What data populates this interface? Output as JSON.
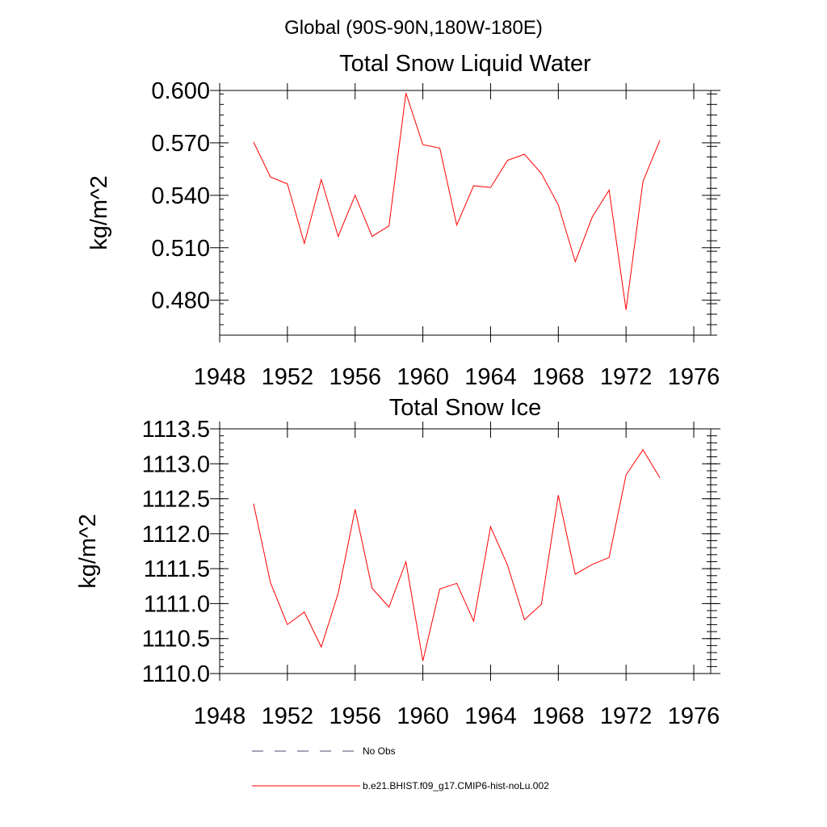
{
  "figure": {
    "suptitle": "Global (90S-90N,180W-180E)",
    "legend": [
      {
        "label": "No Obs",
        "style": "dashed",
        "color": "#4a4a70"
      },
      {
        "label": "b.e21.BHIST.f09_g17.CMIP6-hist-noLu.002",
        "style": "solid",
        "color": "#ff0000"
      }
    ]
  },
  "chart_data": [
    {
      "type": "line",
      "title": "Total Snow Liquid Water",
      "xlabel": "",
      "ylabel": "kg/m^2",
      "xlim": [
        1948,
        1977
      ],
      "ylim": [
        0.46,
        0.6
      ],
      "xticks": [
        1948,
        1952,
        1956,
        1960,
        1964,
        1968,
        1972,
        1976
      ],
      "yticks": [
        0.48,
        0.51,
        0.54,
        0.57,
        0.6
      ],
      "ytick_labels": [
        "0.480",
        "0.510",
        "0.540",
        "0.570",
        "0.600"
      ],
      "x": [
        1950,
        1951,
        1952,
        1953,
        1954,
        1955,
        1956,
        1957,
        1958,
        1959,
        1960,
        1961,
        1962,
        1963,
        1964,
        1965,
        1966,
        1967,
        1968,
        1969,
        1970,
        1971,
        1972,
        1973,
        1974
      ],
      "series": [
        {
          "name": "b.e21.BHIST.f09_g17.CMIP6-hist-noLu.002",
          "color": "#ff0000",
          "values": [
            0.5705,
            0.5505,
            0.5465,
            0.5125,
            0.549,
            0.5165,
            0.54,
            0.5165,
            0.5225,
            0.5985,
            0.569,
            0.567,
            0.523,
            0.5455,
            0.5445,
            0.56,
            0.5635,
            0.5525,
            0.5345,
            0.502,
            0.5275,
            0.543,
            0.4745,
            0.548,
            0.5715
          ]
        }
      ]
    },
    {
      "type": "line",
      "title": "Total Snow Ice",
      "xlabel": "",
      "ylabel": "kg/m^2",
      "xlim": [
        1948,
        1977
      ],
      "ylim": [
        1110.0,
        1113.5
      ],
      "xticks": [
        1948,
        1952,
        1956,
        1960,
        1964,
        1968,
        1972,
        1976
      ],
      "yticks": [
        1110.0,
        1110.5,
        1111.0,
        1111.5,
        1112.0,
        1112.5,
        1113.0,
        1113.5
      ],
      "ytick_labels": [
        "1110.0",
        "1110.5",
        "1111.0",
        "1111.5",
        "1112.0",
        "1112.5",
        "1113.0",
        "1113.5"
      ],
      "x": [
        1950,
        1951,
        1952,
        1953,
        1954,
        1955,
        1956,
        1957,
        1958,
        1959,
        1960,
        1961,
        1962,
        1963,
        1964,
        1965,
        1966,
        1967,
        1968,
        1969,
        1970,
        1971,
        1972,
        1973,
        1974
      ],
      "series": [
        {
          "name": "b.e21.BHIST.f09_g17.CMIP6-hist-noLu.002",
          "color": "#ff0000",
          "values": [
            1112.43,
            1111.3,
            1110.7,
            1110.88,
            1110.38,
            1111.15,
            1112.35,
            1111.22,
            1110.95,
            1111.6,
            1110.18,
            1111.21,
            1111.29,
            1110.75,
            1112.1,
            1111.55,
            1110.77,
            1110.99,
            1112.55,
            1111.42,
            1111.56,
            1111.66,
            1112.84,
            1113.2,
            1112.8
          ]
        }
      ]
    }
  ]
}
